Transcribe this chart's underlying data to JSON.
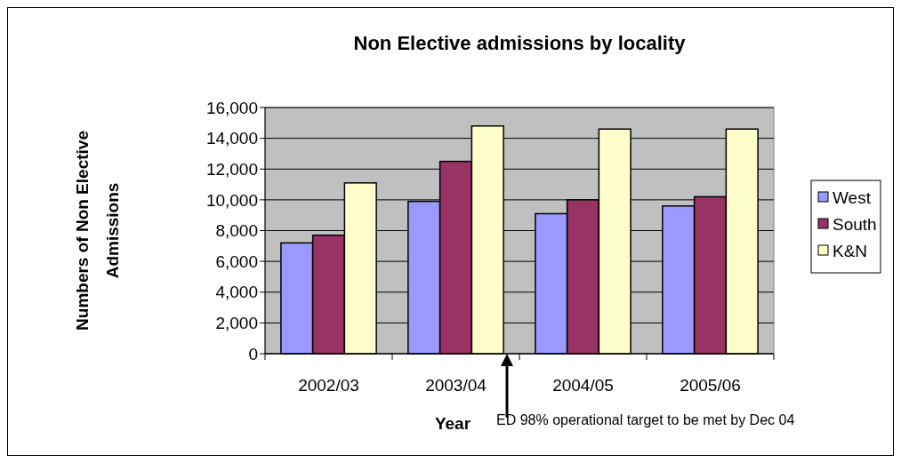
{
  "chart_data": {
    "type": "bar",
    "title": "Non Elective admissions by locality",
    "xlabel": "Year",
    "ylabel": "Numbers of Non Elective Admissions",
    "categories": [
      "2002/03",
      "2003/04",
      "2004/05",
      "2005/06"
    ],
    "series": [
      {
        "name": "West",
        "color": "#9999ff",
        "values": [
          7200,
          9900,
          9100,
          9600
        ]
      },
      {
        "name": "South",
        "color": "#993366",
        "values": [
          7700,
          12500,
          10000,
          10200
        ]
      },
      {
        "name": "K&N",
        "color": "#ffffcc",
        "values": [
          11100,
          14800,
          14600,
          14600
        ]
      }
    ],
    "ylim": [
      0,
      16000
    ],
    "yticks": [
      {
        "value": 0,
        "label": "0"
      },
      {
        "value": 2000,
        "label": "2,000"
      },
      {
        "value": 4000,
        "label": "4,000"
      },
      {
        "value": 6000,
        "label": "6,000"
      },
      {
        "value": 8000,
        "label": "8,000"
      },
      {
        "value": 10000,
        "label": "10,000"
      },
      {
        "value": 12000,
        "label": "12,000"
      },
      {
        "value": 14000,
        "label": "14,000"
      },
      {
        "value": 16000,
        "label": "16,000"
      }
    ],
    "grid": "y",
    "legend": "right",
    "annotations": [
      "ED 98% operational target to be met by Dec 04"
    ]
  }
}
